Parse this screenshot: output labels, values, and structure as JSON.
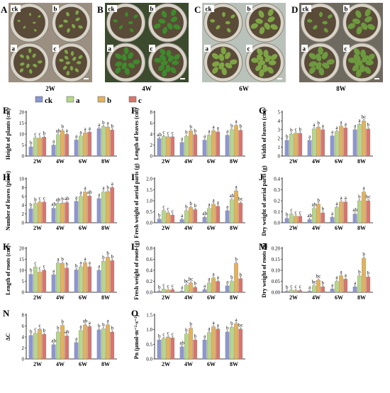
{
  "photos": [
    {
      "letter": "A",
      "week": "2W",
      "pots": [
        "ck",
        "b",
        "a",
        "c"
      ],
      "bg": "#9a8f80",
      "leaf": "#7fa64a",
      "size": 0.55
    },
    {
      "letter": "B",
      "week": "4W",
      "pots": [
        "ck",
        "b",
        "a",
        "c"
      ],
      "bg": "#3c4a2e",
      "leaf": "#3f8a2c",
      "size": 0.85
    },
    {
      "letter": "C",
      "week": "6W",
      "pots": [
        "ck",
        "b",
        "a",
        "c"
      ],
      "bg": "#b9c2ba",
      "leaf": "#7ea545",
      "size": 0.9
    },
    {
      "letter": "D",
      "week": "8W",
      "pots": [
        "ck",
        "b",
        "a",
        "c"
      ],
      "bg": "#6f6a60",
      "leaf": "#6d9a3f",
      "size": 0.95
    }
  ],
  "legend": [
    "ck",
    "a",
    "b",
    "c"
  ],
  "colors": {
    "ck": "#8c96cf",
    "a": "#b6d787",
    "b": "#e3b25c",
    "c": "#d8756e",
    "letter": "#ffffff",
    "text": "#000000"
  },
  "chart_data": [
    {
      "type": "bar",
      "panel": "E",
      "ylabel": "Height of plants (cm)",
      "ylim": [
        0,
        20
      ],
      "yticks": [
        0,
        5,
        10,
        15,
        20
      ],
      "categories": [
        "2W",
        "4W",
        "6W",
        "8W"
      ],
      "series": [
        {
          "name": "ck",
          "values": [
            4.2,
            5.0,
            7.3,
            12.5
          ]
        },
        {
          "name": "a",
          "values": [
            8.3,
            9.8,
            9.1,
            13.5
          ]
        },
        {
          "name": "b",
          "values": [
            8.2,
            11.6,
            10.6,
            13.2
          ]
        },
        {
          "name": "c",
          "values": [
            8.6,
            9.9,
            10.9,
            11.9
          ]
        }
      ],
      "letters": [
        [
          "b",
          "a",
          "a",
          "a"
        ],
        [
          "c",
          "ab",
          "a",
          "b"
        ],
        [
          "c",
          "b",
          "a",
          "a"
        ],
        [
          "b",
          "a",
          "a",
          "b"
        ]
      ]
    },
    {
      "type": "bar",
      "panel": "F",
      "ylabel": "Length of leaves (cm)",
      "ylim": [
        0,
        8
      ],
      "yticks": [
        0,
        2,
        4,
        6,
        8
      ],
      "categories": [
        "2W",
        "4W",
        "6W",
        "8W"
      ],
      "series": [
        {
          "name": "ck",
          "values": [
            3.2,
            2.5,
            2.9,
            3.8
          ]
        },
        {
          "name": "a",
          "values": [
            3.6,
            3.6,
            3.8,
            4.8
          ]
        },
        {
          "name": "b",
          "values": [
            3.5,
            4.6,
            4.6,
            5.6
          ]
        },
        {
          "name": "c",
          "values": [
            3.5,
            3.9,
            4.4,
            4.7
          ]
        }
      ],
      "letters": [
        [
          "ab",
          "a",
          "a",
          "a"
        ],
        [
          "c",
          "b",
          "a",
          "b"
        ],
        [
          "c",
          "b",
          "a",
          "a"
        ],
        [
          "c",
          "b",
          "a",
          "b"
        ]
      ]
    },
    {
      "type": "bar",
      "panel": "G",
      "ylabel": "Width of leaves (cm)",
      "ylim": [
        0,
        5
      ],
      "yticks": [
        0,
        1,
        2,
        3,
        4,
        5
      ],
      "categories": [
        "2W",
        "4W",
        "6W",
        "8W"
      ],
      "series": [
        {
          "name": "ck",
          "values": [
            1.8,
            1.8,
            2.3,
            3.0
          ]
        },
        {
          "name": "a",
          "values": [
            2.5,
            3.1,
            2.8,
            3.6
          ]
        },
        {
          "name": "b",
          "values": [
            2.6,
            3.3,
            3.4,
            4.0
          ]
        },
        {
          "name": "c",
          "values": [
            2.6,
            3.0,
            3.2,
            3.1
          ]
        }
      ],
      "letters": [
        [
          "b",
          "a",
          "a",
          "a"
        ],
        [
          "b",
          "a",
          "a",
          "a"
        ],
        [
          "c",
          "b",
          "a",
          "bc"
        ],
        [
          "b",
          "a",
          "a",
          "b"
        ]
      ]
    },
    {
      "type": "bar",
      "panel": "H",
      "ylabel": "Number of leaves (piece)",
      "ylim": [
        0,
        10
      ],
      "yticks": [
        0,
        2,
        4,
        6,
        8,
        10
      ],
      "categories": [
        "2W",
        "4W",
        "6W",
        "8W"
      ],
      "series": [
        {
          "name": "ck",
          "values": [
            3.2,
            3.3,
            4.9,
            5.5
          ]
        },
        {
          "name": "a",
          "values": [
            4.4,
            4.4,
            6.0,
            7.0
          ]
        },
        {
          "name": "b",
          "values": [
            4.7,
            4.5,
            7.0,
            7.1
          ]
        },
        {
          "name": "c",
          "values": [
            4.7,
            4.6,
            6.1,
            8.0
          ]
        }
      ],
      "letters": [
        [
          "b",
          "ab",
          "a",
          "a"
        ],
        [
          "b",
          "ab",
          "a",
          "a"
        ],
        [
          "c",
          "b",
          "a",
          "b"
        ],
        [
          "c",
          "ab",
          "ab",
          "a"
        ]
      ]
    },
    {
      "type": "bar",
      "panel": "I",
      "ylabel": "Fresh weight of aerial parts (g)",
      "ylim": [
        0,
        2.0
      ],
      "yticks": [
        0,
        0.5,
        1.0,
        1.5,
        2.0
      ],
      "categories": [
        "2W",
        "4W",
        "6W",
        "8W"
      ],
      "series": [
        {
          "name": "ck",
          "values": [
            0.17,
            0.15,
            0.25,
            0.55
          ]
        },
        {
          "name": "a",
          "values": [
            0.55,
            0.55,
            0.65,
            1.05
          ]
        },
        {
          "name": "b",
          "values": [
            0.45,
            0.7,
            0.85,
            1.45
          ]
        },
        {
          "name": "c",
          "values": [
            0.35,
            0.6,
            0.75,
            0.9
          ]
        }
      ],
      "letters": [
        [
          "b",
          "a",
          "ab",
          "a"
        ],
        [
          "c",
          "b",
          "a",
          "ab"
        ],
        [
          "c",
          "b",
          "a",
          "a"
        ],
        [
          "c",
          "b",
          "a",
          "bc"
        ]
      ]
    },
    {
      "type": "bar",
      "panel": "J",
      "ylabel": "Dry weight of aerial parts (g)",
      "ylim": [
        0,
        0.4
      ],
      "yticks": [
        0,
        0.1,
        0.2,
        0.3,
        0.4
      ],
      "categories": [
        "2W",
        "4W",
        "6W",
        "8W"
      ],
      "series": [
        {
          "name": "ck",
          "values": [
            0.04,
            0.03,
            0.05,
            0.08
          ]
        },
        {
          "name": "a",
          "values": [
            0.08,
            0.13,
            0.14,
            0.2
          ]
        },
        {
          "name": "b",
          "values": [
            0.06,
            0.17,
            0.19,
            0.28
          ]
        },
        {
          "name": "c",
          "values": [
            0.06,
            0.09,
            0.19,
            0.2
          ]
        }
      ],
      "letters": [
        [
          "b",
          "ab",
          "a",
          "ab"
        ],
        [
          "c",
          "ab",
          "a",
          "b"
        ],
        [
          "c",
          "b",
          "a",
          "a"
        ],
        [
          "c",
          "b",
          "a",
          "bc"
        ]
      ]
    },
    {
      "type": "bar",
      "panel": "K",
      "ylabel": "Length of roots (cm)",
      "ylim": [
        0,
        20
      ],
      "yticks": [
        0,
        5,
        10,
        15,
        20
      ],
      "categories": [
        "2W",
        "4W",
        "6W",
        "8W"
      ],
      "series": [
        {
          "name": "ck",
          "values": [
            8.2,
            8.0,
            10.2,
            10.0
          ]
        },
        {
          "name": "a",
          "values": [
            11.5,
            13.3,
            11.6,
            14.1
          ]
        },
        {
          "name": "b",
          "values": [
            9.2,
            13.2,
            13.5,
            16.0
          ]
        },
        {
          "name": "c",
          "values": [
            10.0,
            11.0,
            11.6,
            14.4
          ]
        }
      ],
      "letters": [
        [
          "b",
          "a",
          "b",
          "a"
        ],
        [
          "c",
          "a",
          "a",
          "b"
        ],
        [
          "c",
          "b",
          "a",
          "b"
        ],
        [
          "c",
          "b",
          "a",
          "b"
        ]
      ]
    },
    {
      "type": "bar",
      "panel": "L",
      "ylabel": "Fresh weight of roots (g)",
      "ylim": [
        0,
        0.8
      ],
      "yticks": [
        0,
        0.2,
        0.4,
        0.6,
        0.8
      ],
      "categories": [
        "2W",
        "4W",
        "6W",
        "8W"
      ],
      "series": [
        {
          "name": "ck",
          "values": [
            0.02,
            0.02,
            0.05,
            0.12
          ]
        },
        {
          "name": "a",
          "values": [
            0.06,
            0.13,
            0.17,
            0.2
          ]
        },
        {
          "name": "b",
          "values": [
            0.04,
            0.17,
            0.26,
            0.53
          ]
        },
        {
          "name": "c",
          "values": [
            0.05,
            0.09,
            0.2,
            0.25
          ]
        }
      ],
      "letters": [
        [
          "b",
          "a",
          "a",
          "a"
        ],
        [
          "c",
          "bc",
          "a",
          "b"
        ],
        [
          "c",
          "bc",
          "a",
          "b"
        ],
        [
          "c",
          "b",
          "a",
          "b"
        ]
      ]
    },
    {
      "type": "bar",
      "panel": "M",
      "ylabel": "Dry weight of roots (g)",
      "ylim": [
        0,
        0.2
      ],
      "yticks": [
        0,
        0.05,
        0.1,
        0.15,
        0.2
      ],
      "categories": [
        "2W",
        "4W",
        "6W",
        "8W"
      ],
      "series": [
        {
          "name": "ck",
          "values": [
            0.005,
            0.005,
            0.015,
            0.025
          ]
        },
        {
          "name": "a",
          "values": [
            0.01,
            0.03,
            0.05,
            0.075
          ]
        },
        {
          "name": "b",
          "values": [
            0.008,
            0.055,
            0.075,
            0.155
          ]
        },
        {
          "name": "c",
          "values": [
            0.008,
            0.025,
            0.06,
            0.07
          ]
        }
      ],
      "letters": [
        [
          "b",
          "a",
          "a",
          "a"
        ],
        [
          "c",
          "bc",
          "a",
          "b"
        ],
        [
          "c",
          "bc",
          "a",
          "b"
        ],
        [
          "c",
          "b",
          "a",
          "b"
        ]
      ]
    },
    {
      "type": "bar",
      "panel": "N",
      "ylabel": "ΔC",
      "ylim": [
        0,
        8
      ],
      "yticks": [
        0,
        2,
        4,
        6,
        8
      ],
      "categories": [
        "2W",
        "4W",
        "6W",
        "8W"
      ],
      "series": [
        {
          "name": "ck",
          "values": [
            4.3,
            2.6,
            3.0,
            5.3
          ]
        },
        {
          "name": "a",
          "values": [
            4.7,
            4.9,
            5.2,
            5.5
          ]
        },
        {
          "name": "b",
          "values": [
            5.4,
            6.1,
            6.2,
            6.2
          ]
        },
        {
          "name": "c",
          "values": [
            4.5,
            4.2,
            5.9,
            4.9
          ]
        }
      ],
      "letters": [
        [
          "b",
          "ab",
          "a",
          "b"
        ],
        [
          "c",
          "b",
          "a",
          "b"
        ],
        [
          "c",
          "b",
          "ab",
          "a"
        ],
        [
          "b",
          "ab",
          "a",
          "b"
        ]
      ]
    },
    {
      "type": "bar",
      "panel": "O",
      "ylabel": "Pn (μmol·m⁻²·s⁻¹)",
      "ylim": [
        0,
        1.5
      ],
      "yticks": [
        0,
        0.5,
        1.0,
        1.5
      ],
      "categories": [
        "2W",
        "4W",
        "6W",
        "8W"
      ],
      "series": [
        {
          "name": "ck",
          "values": [
            0.65,
            0.42,
            0.65,
            0.92
          ]
        },
        {
          "name": "a",
          "values": [
            0.7,
            0.85,
            0.9,
            1.08
          ]
        },
        {
          "name": "b",
          "values": [
            0.75,
            1.05,
            1.1,
            1.2
          ]
        },
        {
          "name": "c",
          "values": [
            0.72,
            0.65,
            1.02,
            1.02
          ]
        }
      ],
      "letters": [
        [
          "b",
          "ab",
          "a",
          "b"
        ],
        [
          "c",
          "b",
          "a",
          "b"
        ],
        [
          "c",
          "b",
          "a",
          "a"
        ],
        [
          "c",
          "b",
          "a",
          "bc"
        ]
      ]
    }
  ]
}
